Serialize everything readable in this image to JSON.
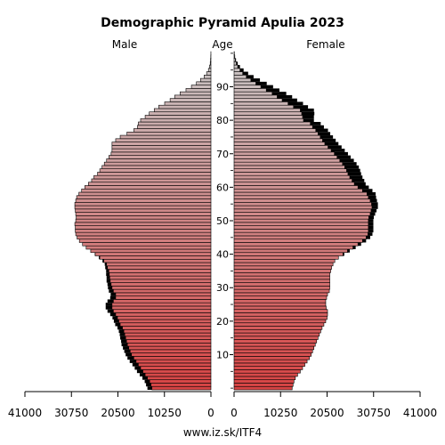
{
  "chart_data": {
    "type": "bar",
    "title": "Demographic Pyramid Apulia 2023",
    "male_label": "Male",
    "age_label": "Age",
    "female_label": "Female",
    "source": "www.iz.sk/ITF4",
    "x_ticks": [
      0,
      10250,
      20500,
      30750,
      41000
    ],
    "x_max": 41000,
    "age_ticks": [
      10,
      20,
      30,
      40,
      50,
      60,
      70,
      80,
      90
    ],
    "ages": [
      0,
      1,
      2,
      3,
      4,
      5,
      6,
      7,
      8,
      9,
      10,
      11,
      12,
      13,
      14,
      15,
      16,
      17,
      18,
      19,
      20,
      21,
      22,
      23,
      24,
      25,
      26,
      27,
      28,
      29,
      30,
      31,
      32,
      33,
      34,
      35,
      36,
      37,
      38,
      39,
      40,
      41,
      42,
      43,
      44,
      45,
      46,
      47,
      48,
      49,
      50,
      51,
      52,
      53,
      54,
      55,
      56,
      57,
      58,
      59,
      60,
      61,
      62,
      63,
      64,
      65,
      66,
      67,
      68,
      69,
      70,
      71,
      72,
      73,
      74,
      75,
      76,
      77,
      78,
      79,
      80,
      81,
      82,
      83,
      84,
      85,
      86,
      87,
      88,
      89,
      90,
      91,
      92,
      93,
      94,
      95,
      96,
      97,
      98,
      99,
      100
    ],
    "series": [
      {
        "name": "Male",
        "values": [
          13000,
          13200,
          13500,
          14000,
          14500,
          15000,
          15500,
          16000,
          16500,
          17000,
          17500,
          17800,
          18100,
          18400,
          18600,
          18800,
          19000,
          19200,
          19500,
          20000,
          20300,
          20600,
          21000,
          21500,
          21800,
          21800,
          21500,
          21000,
          21000,
          21500,
          21800,
          22000,
          22200,
          22300,
          22400,
          22500,
          22800,
          23000,
          23600,
          24500,
          25500,
          26500,
          27500,
          28300,
          29000,
          29500,
          29800,
          29900,
          29900,
          30000,
          29800,
          29700,
          29800,
          29900,
          30000,
          30000,
          29800,
          29600,
          29100,
          28500,
          27800,
          27000,
          26300,
          25800,
          25000,
          24500,
          24000,
          23500,
          23000,
          22500,
          22000,
          21800,
          21800,
          21800,
          21000,
          20000,
          18500,
          17000,
          16200,
          16000,
          15500,
          14500,
          13600,
          12500,
          11500,
          10200,
          9000,
          8000,
          6800,
          5500,
          4300,
          3200,
          2300,
          1500,
          950,
          550,
          300,
          150,
          80,
          40,
          15
        ],
        "excess": [
          1000,
          1100,
          1100,
          1100,
          1200,
          1300,
          1300,
          1300,
          1400,
          1400,
          1300,
          1300,
          1300,
          1300,
          1200,
          1200,
          1100,
          1100,
          1100,
          1100,
          1100,
          1100,
          1200,
          1300,
          1400,
          1400,
          1300,
          1200,
          1100,
          1000,
          900,
          800,
          800,
          700,
          700,
          600,
          500,
          400,
          300,
          200,
          100,
          0,
          0,
          0,
          0,
          0,
          0,
          0,
          0,
          0,
          0,
          0,
          0,
          0,
          0,
          0,
          0,
          0,
          0,
          0,
          0,
          0,
          0,
          0,
          0,
          0,
          0,
          0,
          0,
          0,
          0,
          0,
          0,
          0,
          0,
          0,
          0,
          0,
          0,
          0,
          0,
          0,
          0,
          0,
          0,
          0,
          0,
          0,
          0,
          0,
          0,
          0,
          0,
          0,
          0,
          0,
          0,
          0,
          0,
          0,
          0
        ]
      },
      {
        "name": "Female",
        "values": [
          12800,
          13000,
          13200,
          13500,
          14000,
          14600,
          15100,
          15600,
          16100,
          16600,
          17000,
          17300,
          17600,
          17900,
          18200,
          18500,
          18800,
          19100,
          19400,
          19800,
          20200,
          20500,
          20600,
          20600,
          20300,
          20200,
          20200,
          20400,
          20600,
          21000,
          21100,
          21100,
          21100,
          21100,
          21100,
          21300,
          21500,
          21800,
          22200,
          23000,
          24000,
          25000,
          26200,
          27300,
          28300,
          29100,
          29500,
          29600,
          29600,
          29600,
          29600,
          29700,
          30000,
          30200,
          30400,
          30300,
          30000,
          29600,
          29300,
          28300,
          27300,
          26500,
          26000,
          25500,
          25100,
          24800,
          24400,
          23900,
          23300,
          22700,
          22100,
          21400,
          20700,
          20000,
          19500,
          19000,
          18500,
          18000,
          17300,
          16800,
          15300,
          15100,
          14900,
          14600,
          13100,
          11900,
          10600,
          9500,
          8400,
          7100,
          5900,
          4800,
          3700,
          2700,
          1900,
          1300,
          800,
          500,
          280,
          140,
          60
        ],
        "excess": [
          0,
          0,
          0,
          0,
          0,
          0,
          0,
          0,
          0,
          0,
          0,
          0,
          0,
          0,
          0,
          0,
          0,
          0,
          0,
          0,
          0,
          0,
          0,
          0,
          0,
          0,
          0,
          0,
          0,
          0,
          0,
          0,
          0,
          0,
          0,
          0,
          0,
          0,
          0,
          0,
          300,
          500,
          600,
          700,
          800,
          900,
          1000,
          1100,
          1100,
          1100,
          1100,
          1100,
          1100,
          1200,
          1300,
          1400,
          1500,
          1700,
          1900,
          2200,
          2400,
          2500,
          2700,
          2800,
          2900,
          3000,
          3100,
          3100,
          3100,
          3000,
          3000,
          3000,
          3000,
          3000,
          2900,
          2800,
          2700,
          2700,
          2500,
          2300,
          2300,
          2500,
          2800,
          3000,
          3200,
          3300,
          3300,
          3300,
          3100,
          2900,
          2700,
          2400,
          2000,
          1600,
          1200,
          800,
          500,
          300,
          150,
          80,
          30
        ]
      }
    ],
    "colors": {
      "bar_young": "#d84444",
      "bar_old": "#c8c8c8",
      "bar_outline": "#000000",
      "excess": "#000000"
    }
  }
}
